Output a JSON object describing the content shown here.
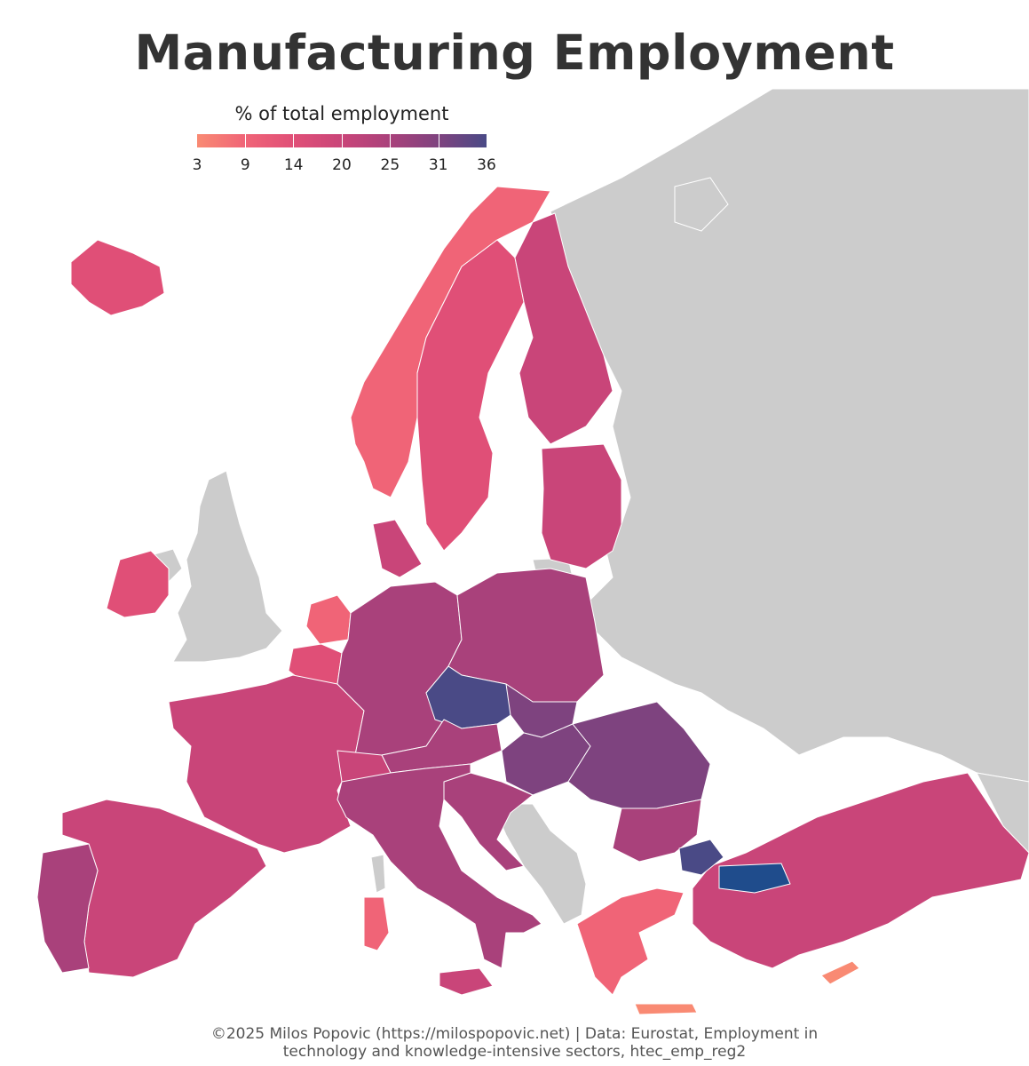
{
  "title": "Manufacturing Employment",
  "legend": {
    "title": "% of total employment",
    "ticks": [
      "3",
      "9",
      "14",
      "20",
      "25",
      "31",
      "36"
    ],
    "colors": [
      "#f98a73",
      "#f06477",
      "#e04f77",
      "#c94579",
      "#a9417b",
      "#7e437f",
      "#4a4a86",
      "#1f4c8c"
    ]
  },
  "map": {
    "background_land_color": "#cccccc",
    "sea_color": "#ffffff",
    "border_color": "#ffffff",
    "regions": [
      {
        "name": "Iceland",
        "level": 2
      },
      {
        "name": "Ireland",
        "level": 2
      },
      {
        "name": "Norway",
        "level": 1
      },
      {
        "name": "Sweden",
        "level": 2
      },
      {
        "name": "Finland",
        "level": 3
      },
      {
        "name": "Baltics",
        "level": 3
      },
      {
        "name": "Denmark",
        "level": 3
      },
      {
        "name": "Netherlands",
        "level": 1
      },
      {
        "name": "Belgium",
        "level": 2
      },
      {
        "name": "France",
        "level": 3
      },
      {
        "name": "Spain",
        "level": 3
      },
      {
        "name": "Portugal",
        "level": 4
      },
      {
        "name": "Germany",
        "level": 4
      },
      {
        "name": "Poland",
        "level": 4
      },
      {
        "name": "Czechia",
        "level": 6
      },
      {
        "name": "Slovakia",
        "level": 5
      },
      {
        "name": "Austria",
        "level": 4
      },
      {
        "name": "Switzerland",
        "level": 3
      },
      {
        "name": "Hungary",
        "level": 5
      },
      {
        "name": "Romania",
        "level": 5
      },
      {
        "name": "Bulgaria",
        "level": 4
      },
      {
        "name": "Italy",
        "level": 4
      },
      {
        "name": "Slovenia-Croatia",
        "level": 4
      },
      {
        "name": "Greece",
        "level": 1
      },
      {
        "name": "Turkey",
        "level": 3
      },
      {
        "name": "Cyprus",
        "level": 0
      }
    ]
  },
  "footer": {
    "line1": "©2025 Milos Popovic (https://milospopovic.net) | Data: Eurostat, Employment in",
    "line2": "technology and knowledge-intensive sectors, htec_emp_reg2"
  }
}
